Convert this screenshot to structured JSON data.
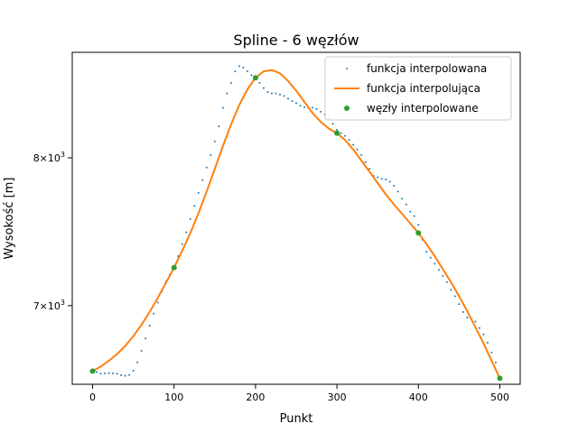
{
  "chart_data": {
    "type": "line",
    "title": "Spline - 6 węzłów",
    "xlabel": "Punkt",
    "ylabel": "Wysokość [m]",
    "xlim": [
      -25,
      525
    ],
    "ylim": [
      6520,
      8800
    ],
    "yscale": "log",
    "x_ticks": [
      0,
      100,
      200,
      300,
      400,
      500
    ],
    "y_ticks": [
      {
        "value": 7000,
        "base": "7",
        "exp": "3"
      },
      {
        "value": 8000,
        "base": "8",
        "exp": "3"
      }
    ],
    "legend_position": "top-right",
    "grid": false,
    "series": [
      {
        "name": "funkcja interpolowana",
        "style": "points",
        "color": "#1f77b4",
        "points": [
          [
            0,
            6598
          ],
          [
            5,
            6592
          ],
          [
            10,
            6583
          ],
          [
            15,
            6585
          ],
          [
            20,
            6586
          ],
          [
            25,
            6585
          ],
          [
            30,
            6583
          ],
          [
            35,
            6574
          ],
          [
            40,
            6570
          ],
          [
            45,
            6575
          ],
          [
            50,
            6600
          ],
          [
            55,
            6650
          ],
          [
            60,
            6720
          ],
          [
            65,
            6795
          ],
          [
            70,
            6875
          ],
          [
            75,
            6950
          ],
          [
            80,
            7020
          ],
          [
            85,
            7090
          ],
          [
            90,
            7155
          ],
          [
            95,
            7200
          ],
          [
            100,
            7245
          ],
          [
            105,
            7320
          ],
          [
            110,
            7400
          ],
          [
            115,
            7480
          ],
          [
            120,
            7570
          ],
          [
            125,
            7660
          ],
          [
            130,
            7750
          ],
          [
            135,
            7840
          ],
          [
            140,
            7930
          ],
          [
            145,
            8020
          ],
          [
            150,
            8120
          ],
          [
            155,
            8230
          ],
          [
            160,
            8370
          ],
          [
            165,
            8480
          ],
          [
            170,
            8560
          ],
          [
            175,
            8650
          ],
          [
            180,
            8690
          ],
          [
            185,
            8680
          ],
          [
            190,
            8650
          ],
          [
            195,
            8620
          ],
          [
            200,
            8600
          ],
          [
            205,
            8560
          ],
          [
            210,
            8520
          ],
          [
            215,
            8490
          ],
          [
            220,
            8480
          ],
          [
            225,
            8480
          ],
          [
            230,
            8470
          ],
          [
            235,
            8460
          ],
          [
            240,
            8440
          ],
          [
            245,
            8420
          ],
          [
            250,
            8405
          ],
          [
            255,
            8385
          ],
          [
            260,
            8375
          ],
          [
            265,
            8370
          ],
          [
            270,
            8370
          ],
          [
            275,
            8360
          ],
          [
            280,
            8340
          ],
          [
            285,
            8320
          ],
          [
            290,
            8290
          ],
          [
            295,
            8250
          ],
          [
            300,
            8205
          ],
          [
            305,
            8180
          ],
          [
            310,
            8160
          ],
          [
            315,
            8130
          ],
          [
            320,
            8095
          ],
          [
            325,
            8060
          ],
          [
            330,
            8020
          ],
          [
            335,
            7970
          ],
          [
            340,
            7920
          ],
          [
            345,
            7870
          ],
          [
            350,
            7860
          ],
          [
            355,
            7850
          ],
          [
            360,
            7845
          ],
          [
            365,
            7830
          ],
          [
            370,
            7800
          ],
          [
            375,
            7760
          ],
          [
            380,
            7710
          ],
          [
            385,
            7670
          ],
          [
            390,
            7620
          ],
          [
            395,
            7590
          ],
          [
            400,
            7530
          ],
          [
            405,
            7430
          ],
          [
            410,
            7350
          ],
          [
            415,
            7310
          ],
          [
            420,
            7270
          ],
          [
            425,
            7230
          ],
          [
            430,
            7190
          ],
          [
            435,
            7150
          ],
          [
            440,
            7100
          ],
          [
            445,
            7060
          ],
          [
            450,
            7010
          ],
          [
            455,
            6960
          ],
          [
            460,
            6925
          ],
          [
            465,
            6915
          ],
          [
            470,
            6900
          ],
          [
            475,
            6860
          ],
          [
            480,
            6820
          ],
          [
            485,
            6770
          ],
          [
            490,
            6710
          ],
          [
            495,
            6650
          ],
          [
            500,
            6560
          ]
        ]
      },
      {
        "name": "funkcja interpolująca",
        "style": "line",
        "color": "#ff7f0e",
        "points": [
          [
            0,
            6598
          ],
          [
            10,
            6625
          ],
          [
            20,
            6660
          ],
          [
            30,
            6700
          ],
          [
            40,
            6750
          ],
          [
            50,
            6810
          ],
          [
            60,
            6880
          ],
          [
            70,
            6960
          ],
          [
            80,
            7050
          ],
          [
            90,
            7145
          ],
          [
            100,
            7245
          ],
          [
            110,
            7355
          ],
          [
            120,
            7475
          ],
          [
            130,
            7610
          ],
          [
            140,
            7760
          ],
          [
            150,
            7920
          ],
          [
            160,
            8085
          ],
          [
            170,
            8245
          ],
          [
            180,
            8390
          ],
          [
            190,
            8510
          ],
          [
            200,
            8600
          ],
          [
            210,
            8650
          ],
          [
            220,
            8660
          ],
          [
            230,
            8635
          ],
          [
            240,
            8575
          ],
          [
            250,
            8500
          ],
          [
            260,
            8415
          ],
          [
            270,
            8330
          ],
          [
            280,
            8265
          ],
          [
            290,
            8215
          ],
          [
            300,
            8180
          ],
          [
            310,
            8130
          ],
          [
            320,
            8060
          ],
          [
            330,
            7980
          ],
          [
            340,
            7900
          ],
          [
            350,
            7820
          ],
          [
            360,
            7740
          ],
          [
            370,
            7670
          ],
          [
            380,
            7605
          ],
          [
            390,
            7540
          ],
          [
            400,
            7475
          ],
          [
            410,
            7400
          ],
          [
            420,
            7320
          ],
          [
            430,
            7235
          ],
          [
            440,
            7150
          ],
          [
            450,
            7060
          ],
          [
            460,
            6965
          ],
          [
            470,
            6865
          ],
          [
            480,
            6765
          ],
          [
            490,
            6660
          ],
          [
            500,
            6555
          ]
        ]
      },
      {
        "name": "węzły interpolowane",
        "style": "markers",
        "color": "#2ca02c",
        "points": [
          [
            0,
            6598
          ],
          [
            100,
            7245
          ],
          [
            200,
            8600
          ],
          [
            300,
            8180
          ],
          [
            400,
            7475
          ],
          [
            500,
            6555
          ]
        ]
      }
    ]
  }
}
